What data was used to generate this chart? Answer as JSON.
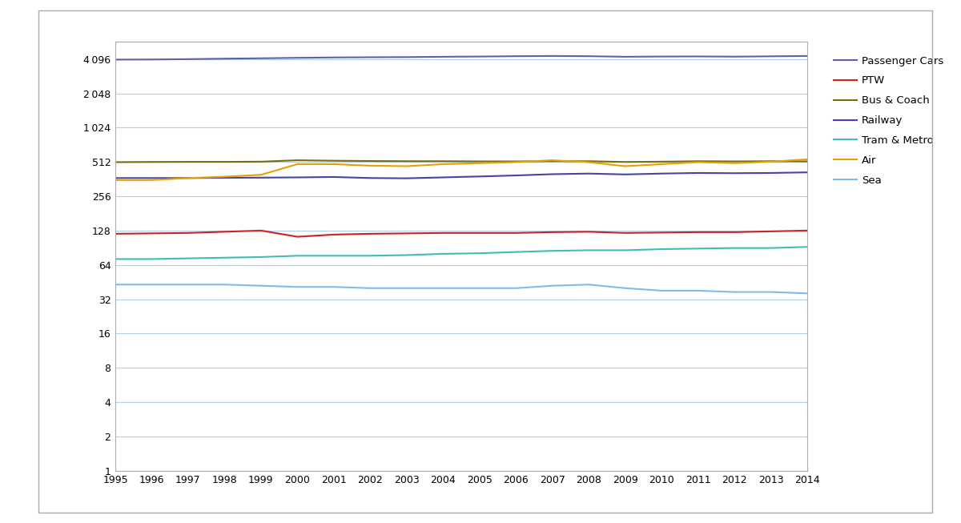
{
  "years": [
    1995,
    1996,
    1997,
    1998,
    1999,
    2000,
    2001,
    2002,
    2003,
    2004,
    2005,
    2006,
    2007,
    2008,
    2009,
    2010,
    2011,
    2012,
    2013,
    2014
  ],
  "passenger_cars": [
    4050,
    4060,
    4090,
    4130,
    4160,
    4200,
    4230,
    4250,
    4260,
    4290,
    4310,
    4340,
    4360,
    4340,
    4290,
    4310,
    4320,
    4300,
    4330,
    4360
  ],
  "ptw": [
    120,
    121,
    122,
    125,
    128,
    113,
    118,
    120,
    121,
    122,
    122,
    122,
    124,
    125,
    122,
    123,
    124,
    124,
    126,
    128
  ],
  "bus_coach": [
    510,
    512,
    513,
    513,
    515,
    530,
    525,
    522,
    520,
    520,
    518,
    518,
    520,
    520,
    512,
    515,
    520,
    518,
    520,
    518
  ],
  "railway": [
    370,
    370,
    370,
    372,
    373,
    375,
    378,
    370,
    368,
    375,
    382,
    390,
    400,
    405,
    398,
    405,
    410,
    408,
    410,
    415
  ],
  "tram_metro": [
    72,
    72,
    73,
    74,
    75,
    77,
    77,
    77,
    78,
    80,
    81,
    83,
    85,
    86,
    86,
    88,
    89,
    90,
    90,
    92
  ],
  "air": [
    355,
    355,
    370,
    380,
    395,
    490,
    490,
    475,
    470,
    490,
    500,
    510,
    530,
    510,
    470,
    490,
    510,
    500,
    515,
    540
  ],
  "sea": [
    43,
    43,
    43,
    43,
    42,
    41,
    41,
    40,
    40,
    40,
    40,
    40,
    42,
    43,
    40,
    38,
    38,
    37,
    37,
    36
  ],
  "yticks": [
    1,
    2,
    4,
    8,
    16,
    32,
    64,
    128,
    256,
    512,
    1024,
    2048,
    4096
  ],
  "grid_color": "#AECDE8",
  "background": "#FFFFFF",
  "border_color": "#AAAAAA"
}
